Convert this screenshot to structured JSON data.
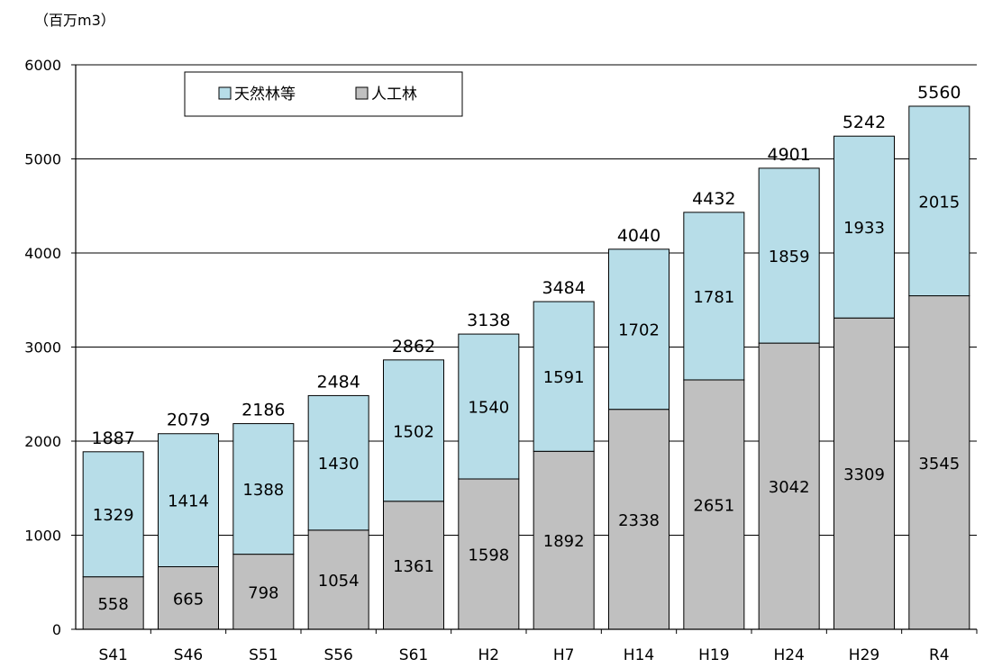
{
  "chart_data": {
    "type": "bar",
    "stacked": true,
    "unit_label": "（百万m3）",
    "categories": [
      "S41",
      "S46",
      "S51",
      "S56",
      "S61",
      "H2",
      "H7",
      "H14",
      "H19",
      "H24",
      "H29",
      "R4"
    ],
    "series": [
      {
        "name": "人工林",
        "color": "#c0c0c0",
        "values": [
          558,
          665,
          798,
          1054,
          1361,
          1598,
          1892,
          2338,
          2651,
          3042,
          3309,
          3545
        ]
      },
      {
        "name": "天然林等",
        "color": "#b7dde8",
        "values": [
          1329,
          1414,
          1388,
          1430,
          1502,
          1540,
          1591,
          1702,
          1781,
          1859,
          1933,
          2015
        ]
      }
    ],
    "totals": [
      1887,
      2079,
      2186,
      2484,
      2862,
      3138,
      3484,
      4040,
      4432,
      4901,
      5242,
      5560
    ],
    "ylim": [
      0,
      6000
    ],
    "yticks": [
      0,
      1000,
      2000,
      3000,
      4000,
      5000,
      6000
    ],
    "grid": true,
    "legend_order": [
      "天然林等",
      "人工林"
    ],
    "legend_position": "top-left"
  }
}
